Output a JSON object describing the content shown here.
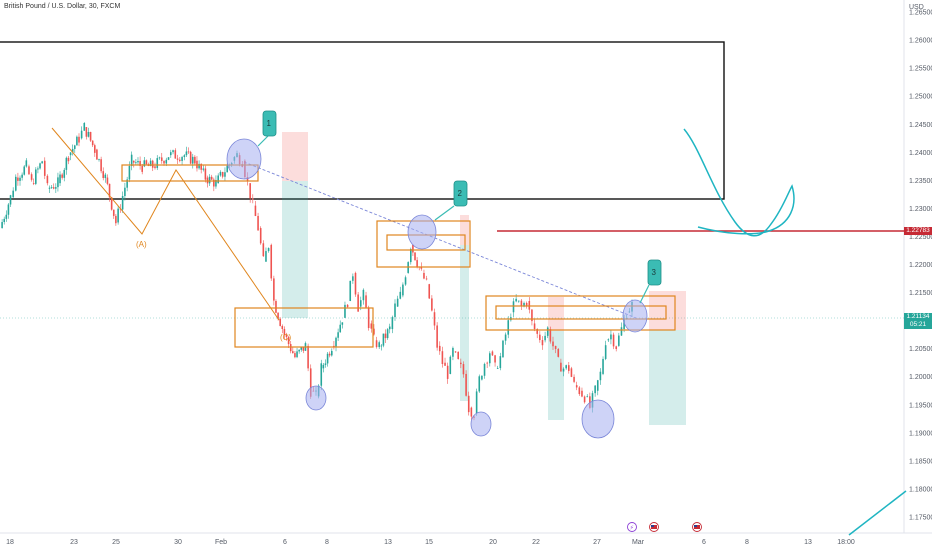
{
  "header": {
    "title": "British Pound / U.S. Dollar, 30, FXCM",
    "currency": "USD"
  },
  "price_labels": {
    "current_price": "1.21134",
    "countdown": "05:21",
    "level_price": "1.22783"
  },
  "colors": {
    "bull": "#26a69a",
    "bear": "#ef5350",
    "orange": "#e0861e",
    "teal": "#1fb5c2",
    "callout": "#3bbcb4",
    "level": "#c62a35",
    "circle": "#a5aef0"
  },
  "annotations": {
    "callouts": [
      "1",
      "2",
      "3"
    ],
    "wave_labels": [
      "(A)",
      "(C)"
    ]
  },
  "chart_data": {
    "type": "candlestick",
    "title": "British Pound / U.S. Dollar, 30, FXCM",
    "y_unit": "USD",
    "y_ticks": [
      "1.26500",
      "1.26000",
      "1.25500",
      "1.25000",
      "1.24500",
      "1.24000",
      "1.23500",
      "1.23000",
      "1.22500",
      "1.22000",
      "1.21500",
      "1.21000",
      "1.20500",
      "1.20000",
      "1.19500",
      "1.19000",
      "1.18500",
      "1.18000",
      "1.17500"
    ],
    "x_ticks": [
      "18",
      "23",
      "25",
      "30",
      "Feb",
      "6",
      "8",
      "13",
      "15",
      "20",
      "22",
      "27",
      "Mar",
      "6",
      "8",
      "13",
      "18:00"
    ],
    "ylim": [
      1.17215,
      1.26715
    ],
    "series": [
      {
        "type": "price_path",
        "points": [
          [
            0,
            1.2265
          ],
          [
            2,
            1.232
          ],
          [
            3,
            1.2355
          ],
          [
            5,
            1.2375
          ],
          [
            6,
            1.2345
          ],
          [
            8,
            1.2385
          ],
          [
            9,
            1.2335
          ],
          [
            11,
            1.2345
          ],
          [
            13,
            1.2395
          ],
          [
            15,
            1.2425
          ],
          [
            16,
            1.2445
          ],
          [
            18,
            1.2405
          ],
          [
            20,
            1.2355
          ],
          [
            22,
            1.2275
          ],
          [
            25,
            1.2385
          ],
          [
            27,
            1.2375
          ],
          [
            29,
            1.2375
          ],
          [
            32,
            1.2395
          ],
          [
            35,
            1.2395
          ],
          [
            37,
            1.2385
          ],
          [
            39,
            1.2355
          ],
          [
            41,
            1.2345
          ],
          [
            44,
            1.2385
          ],
          [
            45,
            1.2395
          ],
          [
            46,
            1.2385
          ],
          [
            47,
            1.2345
          ],
          [
            48,
            1.2305
          ],
          [
            49,
            1.2265
          ],
          [
            50,
            1.2205
          ],
          [
            51,
            1.2235
          ],
          [
            52,
            1.2135
          ],
          [
            54,
            1.2075
          ],
          [
            56,
            1.2035
          ],
          [
            58,
            1.2055
          ],
          [
            59,
            1.1975
          ],
          [
            60,
            1.1965
          ],
          [
            61,
            1.2015
          ],
          [
            63,
            1.2055
          ],
          [
            65,
            1.2105
          ],
          [
            66,
            1.2135
          ],
          [
            67,
            1.2185
          ],
          [
            68,
            1.2125
          ],
          [
            69,
            1.2145
          ],
          [
            70,
            1.2095
          ],
          [
            71,
            1.2065
          ],
          [
            72,
            1.2055
          ],
          [
            74,
            1.2085
          ],
          [
            75,
            1.2125
          ],
          [
            76,
            1.2145
          ],
          [
            77,
            1.2185
          ],
          [
            78,
            1.2235
          ],
          [
            80,
            1.2185
          ],
          [
            81,
            1.2165
          ],
          [
            82,
            1.2115
          ],
          [
            83,
            1.2055
          ],
          [
            84,
            1.2025
          ],
          [
            85,
            1.2005
          ],
          [
            86,
            1.2045
          ],
          [
            87,
            1.2025
          ],
          [
            88,
            1.2005
          ],
          [
            89,
            1.1945
          ],
          [
            90,
            1.1935
          ],
          [
            91,
            1.1995
          ],
          [
            92,
            1.2025
          ],
          [
            93,
            1.2045
          ],
          [
            94,
            1.2015
          ],
          [
            95,
            1.2035
          ],
          [
            96,
            1.2075
          ],
          [
            97,
            1.2115
          ],
          [
            98,
            1.2135
          ],
          [
            99,
            1.2125
          ],
          [
            100,
            1.2135
          ],
          [
            101,
            1.2095
          ],
          [
            102,
            1.2075
          ],
          [
            103,
            1.2065
          ],
          [
            104,
            1.2085
          ],
          [
            105,
            1.2055
          ],
          [
            106,
            1.2025
          ],
          [
            107,
            1.2015
          ],
          [
            108,
            1.2015
          ],
          [
            109,
            1.1985
          ],
          [
            110,
            1.1975
          ],
          [
            111,
            1.1965
          ],
          [
            112,
            1.1945
          ],
          [
            113,
            1.1975
          ],
          [
            114,
            1.2005
          ],
          [
            115,
            1.2065
          ],
          [
            116,
            1.2075
          ],
          [
            117,
            1.2055
          ],
          [
            118,
            1.2085
          ],
          [
            119,
            1.2115
          ],
          [
            120,
            1.2128
          ]
        ]
      }
    ],
    "horizontal_levels": [
      1.22783,
      1.21134
    ],
    "grid": false,
    "legend": "none"
  }
}
